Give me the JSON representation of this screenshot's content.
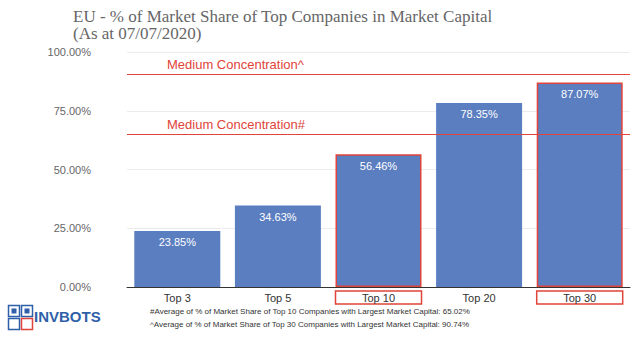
{
  "chart_data": {
    "type": "bar",
    "title": "EU - % of Market Share of Top Companies in Market Capital",
    "subtitle": "(As at 07/07/2020)",
    "categories": [
      "Top 3",
      "Top 5",
      "Top 10",
      "Top 20",
      "Top 30"
    ],
    "values": [
      23.85,
      34.63,
      56.46,
      78.35,
      87.07
    ],
    "value_labels": [
      "23.85%",
      "34.63%",
      "56.46%",
      "78.35%",
      "87.07%"
    ],
    "color": "#5b7ec1",
    "data_labels": true,
    "ylim": [
      0,
      100
    ],
    "yticks": [
      {
        "value": 0,
        "label": "0.00%"
      },
      {
        "value": 25,
        "label": "25.00%"
      },
      {
        "value": 50,
        "label": "50.00%"
      },
      {
        "value": 75,
        "label": "75.00%"
      },
      {
        "value": 100,
        "label": "100.00%"
      }
    ],
    "grid": true,
    "highlighted_categories": [
      "Top 10",
      "Top 30"
    ],
    "reference_lines": [
      {
        "value": 90.74,
        "label": "Medium Concentration^",
        "color": "#e0443a"
      },
      {
        "value": 65.02,
        "label": "Medium Concentration#",
        "color": "#e0443a"
      }
    ],
    "footnotes": [
      "#Average of % of Market Share of Top 10 Companies with Largest Market Capital: 65.02%",
      "^Average of % of Market Share of Top 30 Companies with Largest Market Capital: 90.74%"
    ],
    "logo": "INVBOTS"
  }
}
